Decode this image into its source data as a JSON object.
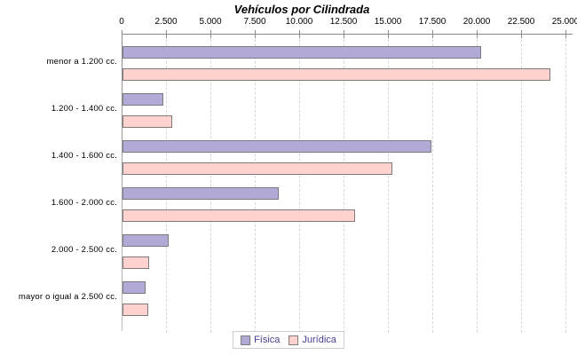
{
  "chart_data": {
    "type": "bar",
    "orientation": "horizontal",
    "title": "Vehículos por Cilindrada",
    "categories": [
      "menor a 1.200 cc.",
      "1.200 - 1.400 cc.",
      "1.400 - 1.600 cc.",
      "1.600 - 2.000 cc.",
      "2.000 - 2.500 cc.",
      "mayor o igual a 2.500 cc."
    ],
    "series": [
      {
        "name": "Física",
        "color": "#b2a9d6",
        "values": [
          20200,
          2300,
          17400,
          8800,
          2600,
          1300
        ]
      },
      {
        "name": "Jurídica",
        "color": "#ffd2d0",
        "values": [
          24100,
          2800,
          15200,
          13100,
          1500,
          1450
        ]
      }
    ],
    "x_axis": {
      "min": 0,
      "max": 25000,
      "tick_values": [
        0,
        2500,
        5000,
        7500,
        10000,
        12500,
        15000,
        17500,
        20000,
        22500,
        25000
      ],
      "tick_labels": [
        "0",
        "2.500",
        "5.000",
        "7.500",
        "10.000",
        "12.500",
        "15.000",
        "17.500",
        "20.000",
        "22.500",
        "25.000"
      ]
    },
    "legend": {
      "position": "bottom",
      "entries": [
        "Física",
        "Jurídica"
      ]
    },
    "grid": "vertical-dashed",
    "colors": {
      "axis": "#8a8a8a",
      "gridline": "#d6d6d6",
      "bar_border": "#7b7b7b",
      "legend_text": "#4a3c8f",
      "background": "#ffffff"
    }
  }
}
